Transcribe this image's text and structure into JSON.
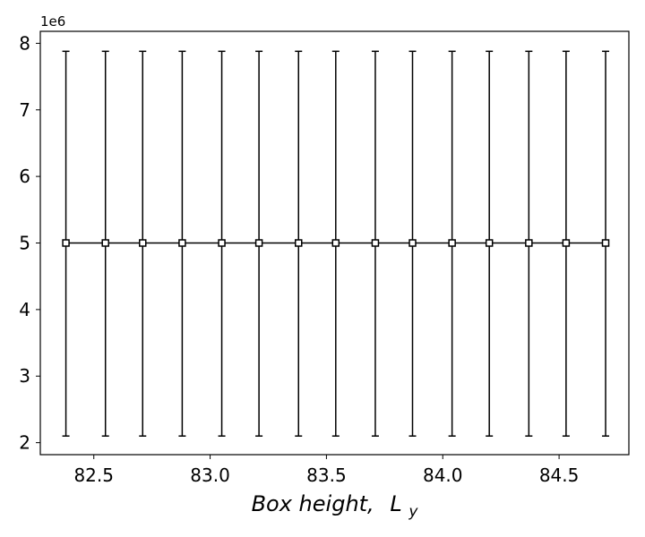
{
  "chart_data": {
    "type": "line",
    "title": "",
    "xlabel": "Box height,",
    "xlabel_symbol": "L",
    "xlabel_subscript": "y",
    "ylabel": "",
    "y_exponent_label": "1e6",
    "xlim": [
      82.27,
      84.8
    ],
    "ylim": [
      1.82,
      8.18
    ],
    "x_ticks": [
      82.5,
      83.0,
      83.5,
      84.0,
      84.5
    ],
    "x_tick_labels": [
      "82.5",
      "83.0",
      "83.5",
      "84.0",
      "84.5"
    ],
    "y_ticks": [
      2,
      3,
      4,
      5,
      6,
      7,
      8
    ],
    "y_tick_labels": [
      "2",
      "3",
      "4",
      "5",
      "6",
      "7",
      "8"
    ],
    "grid": false,
    "legend": "none",
    "marker": "square-open",
    "color": "#000000",
    "series": [
      {
        "x": [
          82.38,
          82.55,
          82.71,
          82.88,
          83.05,
          83.21,
          83.38,
          83.54,
          83.71,
          83.87,
          84.04,
          84.2,
          84.37,
          84.53,
          84.7
        ],
        "y": [
          5.0,
          5.0,
          5.0,
          5.0,
          5.0,
          5.0,
          5.0,
          5.0,
          5.0,
          5.0,
          5.0,
          5.0,
          5.0,
          5.0,
          5.0
        ],
        "err_low": [
          2.1,
          2.1,
          2.1,
          2.1,
          2.1,
          2.1,
          2.1,
          2.1,
          2.1,
          2.1,
          2.1,
          2.1,
          2.1,
          2.1,
          2.1
        ],
        "err_high": [
          7.88,
          7.88,
          7.88,
          7.88,
          7.88,
          7.88,
          7.88,
          7.88,
          7.88,
          7.88,
          7.88,
          7.88,
          7.88,
          7.88,
          7.88
        ]
      }
    ]
  }
}
